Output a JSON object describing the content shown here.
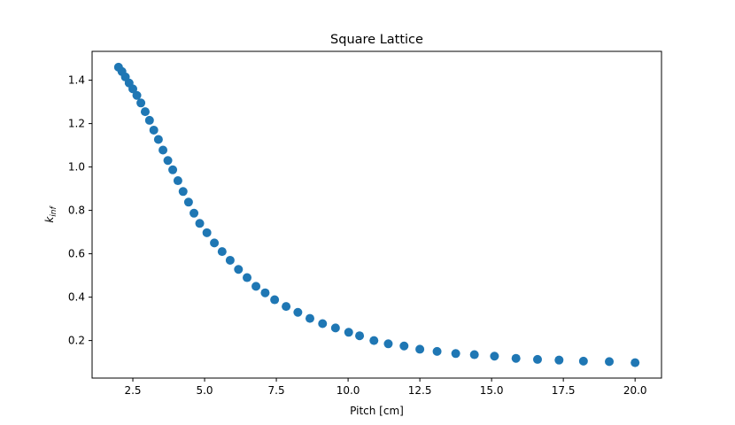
{
  "chart_data": {
    "type": "scatter",
    "title": "Square Lattice",
    "xlabel": "Pitch [cm]",
    "ylabel": {
      "base": "k",
      "subscript": "inf"
    },
    "xlim": [
      1.08,
      20.92
    ],
    "ylim": [
      0.027,
      1.533
    ],
    "xticks": [
      2.5,
      5.0,
      7.5,
      10.0,
      12.5,
      15.0,
      17.5,
      20.0
    ],
    "xtick_labels": [
      "2.5",
      "5.0",
      "7.5",
      "10.0",
      "12.5",
      "15.0",
      "17.5",
      "20.0"
    ],
    "yticks": [
      0.2,
      0.4,
      0.6,
      0.8,
      1.0,
      1.2,
      1.4
    ],
    "ytick_labels": [
      "0.2",
      "0.4",
      "0.6",
      "0.8",
      "1.0",
      "1.2",
      "1.4"
    ],
    "grid": false,
    "marker_color": "#1f77b4",
    "series": [
      {
        "x": [
          2.0,
          2.12,
          2.24,
          2.37,
          2.5,
          2.64,
          2.78,
          2.93,
          3.08,
          3.23,
          3.39,
          3.55,
          3.72,
          3.89,
          4.07,
          4.25,
          4.44,
          4.63,
          4.83,
          5.08,
          5.34,
          5.61,
          5.89,
          6.18,
          6.48,
          6.79,
          7.11,
          7.44,
          7.84,
          8.25,
          8.67,
          9.11,
          9.56,
          10.02,
          10.4,
          10.9,
          11.4,
          11.95,
          12.5,
          13.1,
          13.75,
          14.4,
          15.1,
          15.85,
          16.6,
          17.35,
          18.2,
          19.1,
          20.0
        ],
        "y": [
          1.46,
          1.44,
          1.415,
          1.387,
          1.36,
          1.33,
          1.295,
          1.255,
          1.215,
          1.17,
          1.127,
          1.078,
          1.03,
          0.987,
          0.937,
          0.887,
          0.838,
          0.787,
          0.74,
          0.697,
          0.65,
          0.61,
          0.57,
          0.528,
          0.49,
          0.45,
          0.42,
          0.388,
          0.357,
          0.33,
          0.302,
          0.278,
          0.258,
          0.238,
          0.222,
          0.2,
          0.185,
          0.175,
          0.16,
          0.15,
          0.14,
          0.135,
          0.128,
          0.118,
          0.113,
          0.11,
          0.105,
          0.103,
          0.098
        ]
      }
    ]
  }
}
